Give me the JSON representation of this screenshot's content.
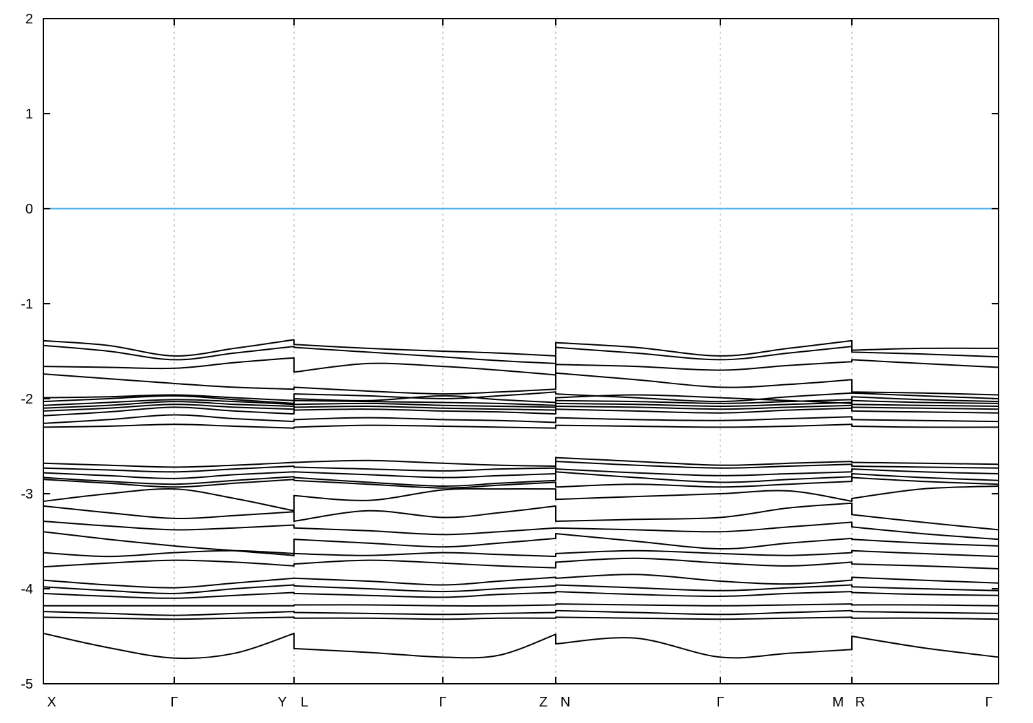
{
  "chart_data": {
    "type": "line",
    "title": "",
    "xlabel": "",
    "ylabel": "",
    "ylim": [
      -5,
      2
    ],
    "yticks": [
      2,
      1,
      0,
      -1,
      -2,
      -3,
      -4,
      -5
    ],
    "grid": "vertical-dashed-at-symmetry-points",
    "legend": "none",
    "fermi_level": 0,
    "path_labels": [
      "X",
      "Γ",
      "Y|L",
      "Γ",
      "Z|N",
      "Γ",
      "M|R",
      "Γ"
    ],
    "x_tick_labels": [
      {
        "pos": 0,
        "label": "X",
        "dx": 12
      },
      {
        "pos": 0.137,
        "label": "Γ",
        "dx": 0
      },
      {
        "pos": 0.2624,
        "label": "Y",
        "dx": -17
      },
      {
        "pos": 0.2624,
        "label": "L",
        "dx": 15
      },
      {
        "pos": 0.4182,
        "label": "Γ",
        "dx": 0
      },
      {
        "pos": 0.5364,
        "label": "Z",
        "dx": -18
      },
      {
        "pos": 0.5364,
        "label": "N",
        "dx": 14
      },
      {
        "pos": 0.7087,
        "label": "Γ",
        "dx": 0
      },
      {
        "pos": 0.8464,
        "label": "M",
        "dx": -20
      },
      {
        "pos": 0.8464,
        "label": "R",
        "dx": 12
      },
      {
        "pos": 1,
        "label": "Γ",
        "dx": -14
      }
    ],
    "gridline_positions": [
      0.137,
      0.2624,
      0.4182,
      0.5364,
      0.7087,
      0.8464
    ],
    "colors": {
      "band": "#000000",
      "fermi": "#56b4e9",
      "grid": "#9e9e9e",
      "frame": "#000000"
    },
    "band_x": [
      0,
      0.068,
      0.137,
      0.2,
      0.2624,
      0.2624,
      0.34,
      0.4182,
      0.477,
      0.5364,
      0.5364,
      0.62,
      0.7087,
      0.78,
      0.8464,
      0.8464,
      0.92,
      1.0
    ],
    "bands": [
      [
        -1.39,
        -1.44,
        -1.55,
        -1.47,
        -1.38,
        -1.43,
        -1.47,
        -1.5,
        -1.52,
        -1.55,
        -1.41,
        -1.46,
        -1.55,
        -1.47,
        -1.39,
        -1.49,
        -1.47,
        -1.47
      ],
      [
        -1.44,
        -1.5,
        -1.59,
        -1.52,
        -1.45,
        -1.46,
        -1.51,
        -1.56,
        -1.6,
        -1.63,
        -1.46,
        -1.52,
        -1.59,
        -1.52,
        -1.45,
        -1.51,
        -1.53,
        -1.56
      ],
      [
        -1.66,
        -1.67,
        -1.68,
        -1.62,
        -1.57,
        -1.72,
        -1.63,
        -1.66,
        -1.7,
        -1.75,
        -1.64,
        -1.66,
        -1.7,
        -1.65,
        -1.61,
        -1.59,
        -1.63,
        -1.67
      ],
      [
        -1.74,
        -1.79,
        -1.84,
        -1.88,
        -1.9,
        -1.88,
        -1.92,
        -1.95,
        -1.93,
        -1.9,
        -1.73,
        -1.8,
        -1.88,
        -1.85,
        -1.8,
        -1.93,
        -1.94,
        -1.96
      ],
      [
        -1.99,
        -1.98,
        -1.96,
        -1.99,
        -2.02,
        -1.95,
        -1.97,
        -2.0,
        -1.97,
        -1.93,
        -1.95,
        -1.99,
        -2.03,
        -1.98,
        -1.94,
        -1.94,
        -1.97,
        -2.0
      ],
      [
        -2.03,
        -2.0,
        -1.97,
        -2.01,
        -2.05,
        -2.0,
        -2.02,
        -1.97,
        -2.01,
        -2.04,
        -1.99,
        -1.96,
        -1.99,
        -2.02,
        -2.05,
        -1.98,
        -2.01,
        -2.03
      ],
      [
        -2.07,
        -2.04,
        -2.01,
        -2.03,
        -2.06,
        -2.02,
        -2.03,
        -2.04,
        -2.05,
        -2.07,
        -2.02,
        -2.03,
        -2.05,
        -2.03,
        -2.01,
        -2.02,
        -2.04,
        -2.05
      ],
      [
        -2.1,
        -2.07,
        -2.03,
        -2.06,
        -2.08,
        -2.06,
        -2.05,
        -2.07,
        -2.08,
        -2.09,
        -2.05,
        -2.06,
        -2.08,
        -2.06,
        -2.04,
        -2.06,
        -2.07,
        -2.08
      ],
      [
        -2.13,
        -2.1,
        -2.06,
        -2.09,
        -2.11,
        -2.09,
        -2.08,
        -2.1,
        -2.11,
        -2.12,
        -2.08,
        -2.09,
        -2.11,
        -2.09,
        -2.07,
        -2.09,
        -2.1,
        -2.11
      ],
      [
        -2.18,
        -2.14,
        -2.09,
        -2.13,
        -2.16,
        -2.12,
        -2.11,
        -2.13,
        -2.14,
        -2.16,
        -2.11,
        -2.13,
        -2.15,
        -2.12,
        -2.1,
        -2.13,
        -2.14,
        -2.15
      ],
      [
        -2.26,
        -2.22,
        -2.17,
        -2.21,
        -2.24,
        -2.22,
        -2.2,
        -2.22,
        -2.23,
        -2.25,
        -2.2,
        -2.22,
        -2.23,
        -2.21,
        -2.19,
        -2.22,
        -2.23,
        -2.24
      ],
      [
        -2.3,
        -2.29,
        -2.27,
        -2.29,
        -2.31,
        -2.3,
        -2.28,
        -2.29,
        -2.3,
        -2.31,
        -2.28,
        -2.29,
        -2.3,
        -2.29,
        -2.27,
        -2.29,
        -2.3,
        -2.3
      ],
      [
        -2.68,
        -2.7,
        -2.72,
        -2.7,
        -2.67,
        -2.67,
        -2.65,
        -2.68,
        -2.7,
        -2.71,
        -2.62,
        -2.66,
        -2.7,
        -2.68,
        -2.66,
        -2.67,
        -2.68,
        -2.69
      ],
      [
        -2.73,
        -2.75,
        -2.77,
        -2.74,
        -2.71,
        -2.72,
        -2.74,
        -2.76,
        -2.74,
        -2.73,
        -2.66,
        -2.7,
        -2.73,
        -2.71,
        -2.69,
        -2.71,
        -2.72,
        -2.73
      ],
      [
        -2.78,
        -2.81,
        -2.84,
        -2.8,
        -2.77,
        -2.77,
        -2.8,
        -2.83,
        -2.81,
        -2.79,
        -2.74,
        -2.78,
        -2.81,
        -2.79,
        -2.77,
        -2.74,
        -2.77,
        -2.79
      ],
      [
        -2.83,
        -2.87,
        -2.9,
        -2.86,
        -2.82,
        -2.83,
        -2.88,
        -2.92,
        -2.89,
        -2.86,
        -2.77,
        -2.83,
        -2.88,
        -2.85,
        -2.82,
        -2.79,
        -2.83,
        -2.86
      ],
      [
        -2.85,
        -2.89,
        -2.93,
        -2.89,
        -2.85,
        -2.86,
        -2.9,
        -2.94,
        -2.91,
        -2.88,
        -2.93,
        -2.9,
        -2.93,
        -2.9,
        -2.87,
        -2.83,
        -2.87,
        -2.9
      ],
      [
        -3.08,
        -3.0,
        -2.95,
        -3.05,
        -3.18,
        -3.02,
        -3.07,
        -2.96,
        -2.95,
        -2.95,
        -3.06,
        -3.03,
        -3.0,
        -2.97,
        -3.08,
        -3.05,
        -2.95,
        -2.92
      ],
      [
        -3.13,
        -3.2,
        -3.26,
        -3.23,
        -3.19,
        -3.29,
        -3.18,
        -3.25,
        -3.2,
        -3.13,
        -3.29,
        -3.27,
        -3.25,
        -3.15,
        -3.1,
        -3.22,
        -3.3,
        -3.38
      ],
      [
        -3.29,
        -3.34,
        -3.38,
        -3.36,
        -3.33,
        -3.36,
        -3.39,
        -3.43,
        -3.4,
        -3.36,
        -3.36,
        -3.38,
        -3.4,
        -3.35,
        -3.3,
        -3.35,
        -3.42,
        -3.48
      ],
      [
        -3.4,
        -3.48,
        -3.55,
        -3.6,
        -3.65,
        -3.48,
        -3.52,
        -3.56,
        -3.52,
        -3.47,
        -3.42,
        -3.5,
        -3.58,
        -3.52,
        -3.47,
        -3.48,
        -3.52,
        -3.55
      ],
      [
        -3.62,
        -3.66,
        -3.62,
        -3.6,
        -3.63,
        -3.63,
        -3.65,
        -3.62,
        -3.64,
        -3.66,
        -3.63,
        -3.6,
        -3.63,
        -3.65,
        -3.62,
        -3.6,
        -3.63,
        -3.66
      ],
      [
        -3.77,
        -3.73,
        -3.7,
        -3.72,
        -3.76,
        -3.74,
        -3.7,
        -3.73,
        -3.76,
        -3.78,
        -3.72,
        -3.68,
        -3.73,
        -3.76,
        -3.72,
        -3.74,
        -3.76,
        -3.79
      ],
      [
        -3.91,
        -3.96,
        -3.99,
        -3.94,
        -3.89,
        -3.89,
        -3.92,
        -3.96,
        -3.92,
        -3.88,
        -3.89,
        -3.85,
        -3.92,
        -3.95,
        -3.91,
        -3.88,
        -3.91,
        -3.94
      ],
      [
        -3.98,
        -4.02,
        -4.05,
        -4.0,
        -3.96,
        -3.97,
        -4.0,
        -4.03,
        -4.0,
        -3.97,
        -3.96,
        -3.99,
        -4.02,
        -3.99,
        -3.96,
        -3.98,
        -4.0,
        -4.02
      ],
      [
        -4.05,
        -4.08,
        -4.1,
        -4.07,
        -4.04,
        -4.05,
        -4.07,
        -4.09,
        -4.06,
        -4.04,
        -4.03,
        -4.06,
        -4.08,
        -4.05,
        -4.03,
        -4.04,
        -4.06,
        -4.07
      ],
      [
        -4.18,
        -4.18,
        -4.18,
        -4.18,
        -4.18,
        -4.17,
        -4.17,
        -4.18,
        -4.18,
        -4.17,
        -4.16,
        -4.17,
        -4.18,
        -4.17,
        -4.16,
        -4.17,
        -4.17,
        -4.18
      ],
      [
        -4.24,
        -4.26,
        -4.28,
        -4.26,
        -4.24,
        -4.25,
        -4.26,
        -4.27,
        -4.26,
        -4.25,
        -4.23,
        -4.25,
        -4.27,
        -4.25,
        -4.23,
        -4.24,
        -4.25,
        -4.26
      ],
      [
        -4.3,
        -4.31,
        -4.32,
        -4.31,
        -4.3,
        -4.31,
        -4.31,
        -4.32,
        -4.31,
        -4.31,
        -4.3,
        -4.31,
        -4.32,
        -4.31,
        -4.3,
        -4.31,
        -4.31,
        -4.32
      ],
      [
        -4.47,
        -4.62,
        -4.73,
        -4.68,
        -4.47,
        -4.63,
        -4.67,
        -4.72,
        -4.7,
        -4.48,
        -4.58,
        -4.52,
        -4.72,
        -4.68,
        -4.64,
        -4.5,
        -4.62,
        -4.72
      ]
    ]
  }
}
